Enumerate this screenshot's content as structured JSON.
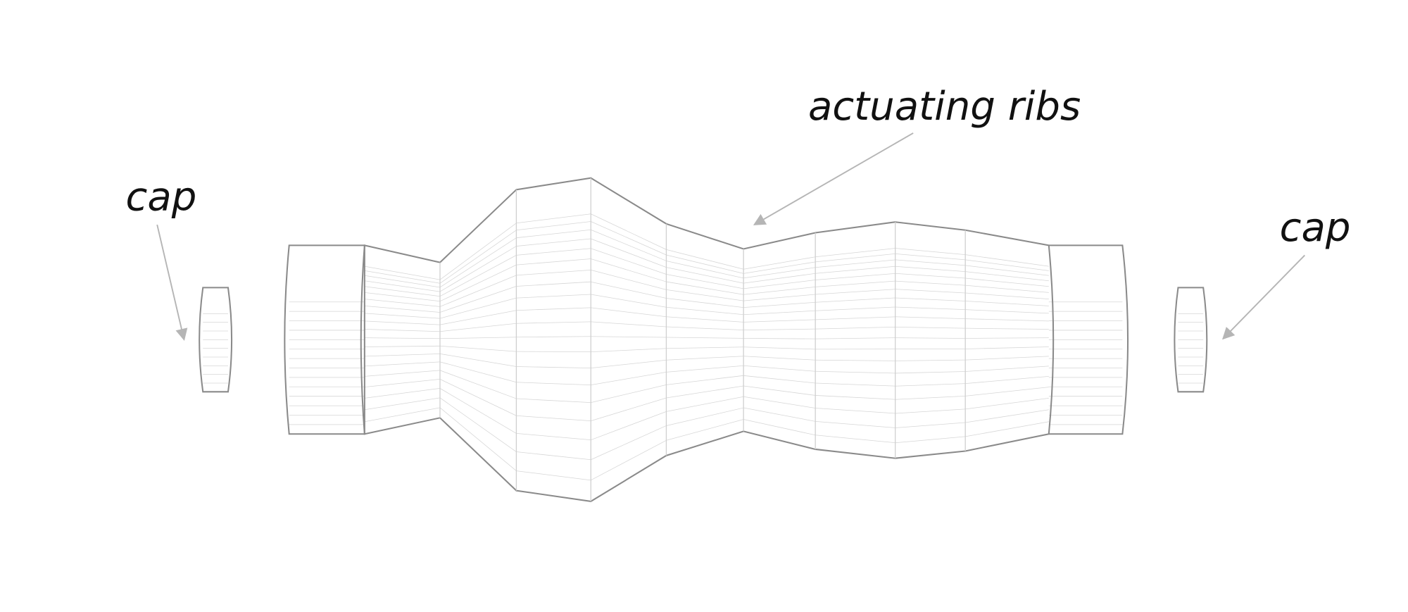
{
  "annotations": [
    "cap",
    "actuating ribs",
    "cap"
  ]
}
